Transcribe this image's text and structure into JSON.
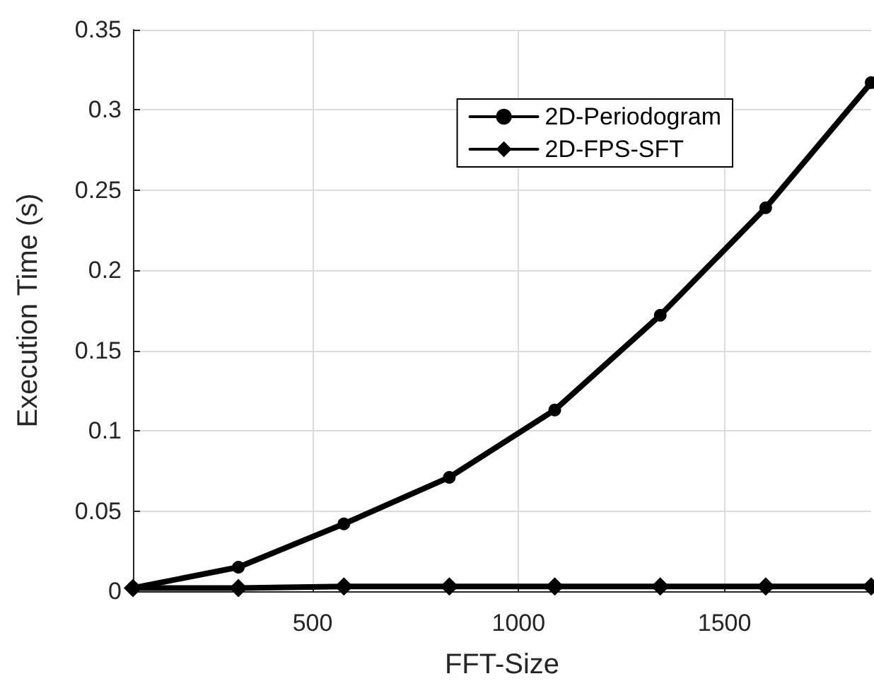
{
  "chart_data": {
    "type": "line",
    "xlabel": "FFT-Size",
    "ylabel": "Execution Time (s)",
    "x": [
      64,
      320,
      576,
      832,
      1088,
      1344,
      1600,
      1856
    ],
    "series": [
      {
        "name": "2D-Periodogram",
        "color": "#000000",
        "marker": "circle",
        "values": [
          0.002,
          0.015,
          0.042,
          0.071,
          0.113,
          0.172,
          0.239,
          0.317
        ]
      },
      {
        "name": "2D-FPS-SFT",
        "color": "#000000",
        "marker": "diamond",
        "values": [
          0.002,
          0.002,
          0.003,
          0.003,
          0.003,
          0.003,
          0.003,
          0.003
        ]
      }
    ],
    "xlim": [
      64,
      1856
    ],
    "xticks": [
      500,
      1000,
      1500
    ],
    "ylim": [
      0,
      0.35
    ],
    "yticks": [
      0,
      0.05,
      0.1,
      0.15,
      0.2,
      0.25,
      0.3,
      0.35
    ],
    "grid": true,
    "legend": "top right",
    "line_style": "solid"
  }
}
